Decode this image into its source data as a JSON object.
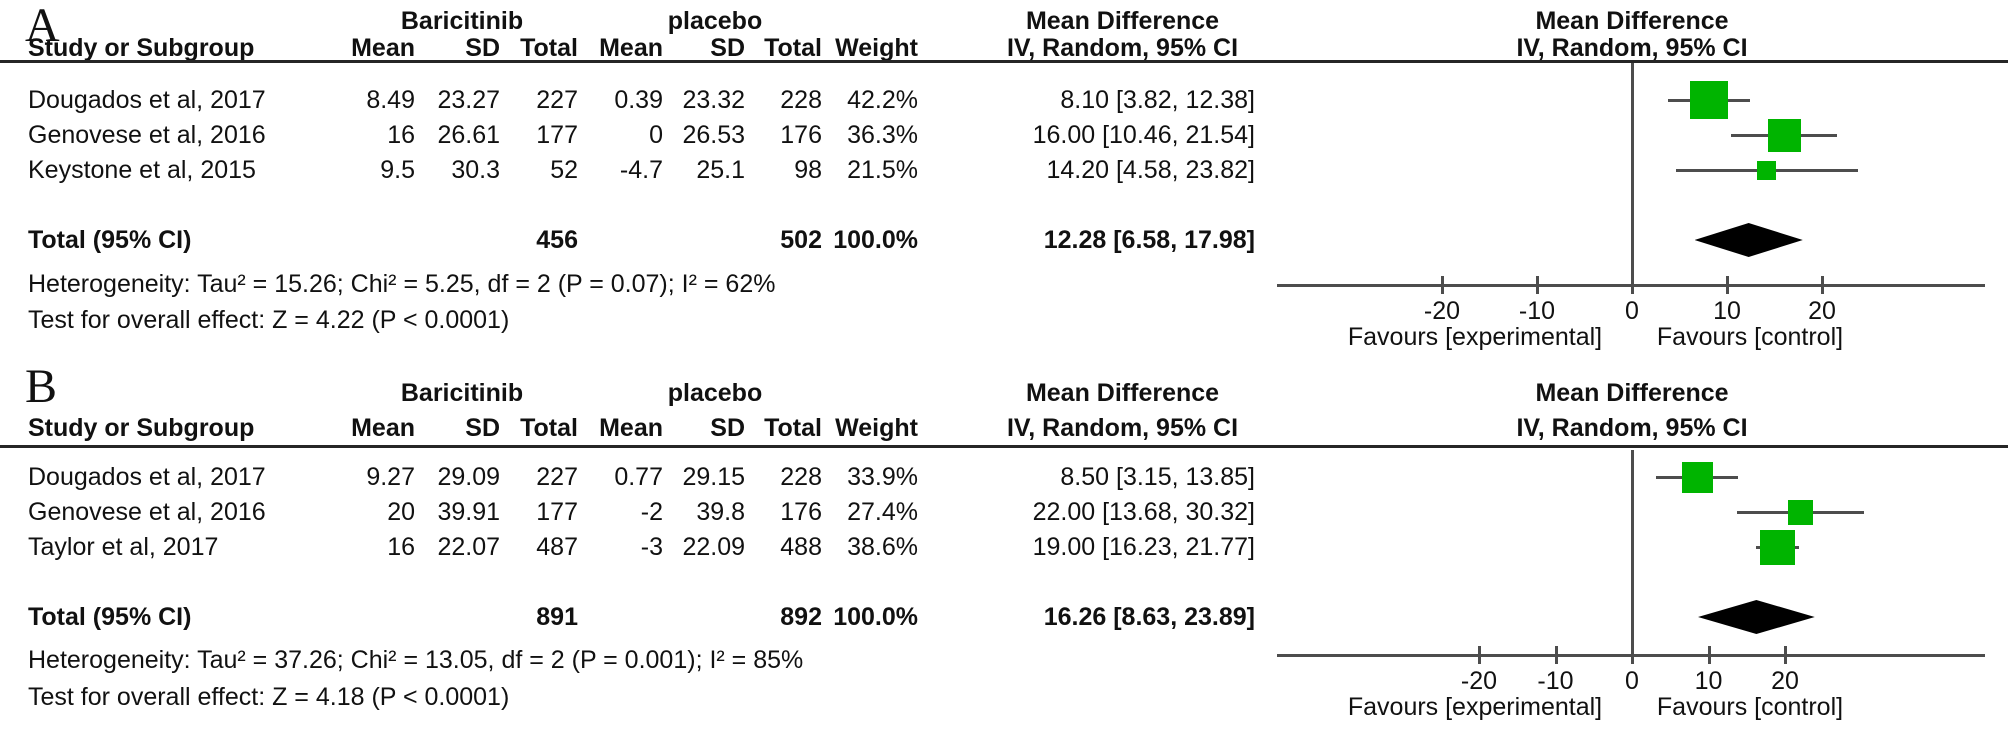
{
  "colors": {
    "marker_green": "#00b400",
    "diamond_black": "#000000",
    "plot_line_gray": "#4d4d4d",
    "separator_dark": "#262626",
    "text": "#111111"
  },
  "chart_data": [
    {
      "type": "scatter",
      "subtype": "forest-plot-mean-difference",
      "panel_label": "A",
      "group_headers": {
        "experimental": "Baricitinib",
        "control": "placebo"
      },
      "effect_header": {
        "line1": "Mean Difference",
        "line2": "IV, Random, 95% CI"
      },
      "column_headers": {
        "study": "Study or Subgroup",
        "mean": "Mean",
        "sd": "SD",
        "total": "Total",
        "weight": "Weight",
        "ci": "IV, Random, 95% CI"
      },
      "studies": [
        {
          "name": "Dougados et al, 2017",
          "exp_mean": "8.49",
          "exp_sd": "23.27",
          "exp_total": "227",
          "ctl_mean": "0.39",
          "ctl_sd": "23.32",
          "ctl_total": "228",
          "weight": "42.2%",
          "ci_label": "8.10 [3.82, 12.38]",
          "md": 8.1,
          "ci_low": 3.82,
          "ci_high": 12.38,
          "weight_pct": 42.2
        },
        {
          "name": "Genovese et al, 2016",
          "exp_mean": "16",
          "exp_sd": "26.61",
          "exp_total": "177",
          "ctl_mean": "0",
          "ctl_sd": "26.53",
          "ctl_total": "176",
          "weight": "36.3%",
          "ci_label": "16.00 [10.46, 21.54]",
          "md": 16.0,
          "ci_low": 10.46,
          "ci_high": 21.54,
          "weight_pct": 36.3
        },
        {
          "name": "Keystone et al, 2015",
          "exp_mean": "9.5",
          "exp_sd": "30.3",
          "exp_total": "52",
          "ctl_mean": "-4.7",
          "ctl_sd": "25.1",
          "ctl_total": "98",
          "weight": "21.5%",
          "ci_label": "14.20 [4.58, 23.82]",
          "md": 14.2,
          "ci_low": 4.58,
          "ci_high": 23.82,
          "weight_pct": 21.5
        }
      ],
      "total_row": {
        "label": "Total (95% CI)",
        "exp_total": "456",
        "ctl_total": "502",
        "weight": "100.0%",
        "ci_label": "12.28 [6.58, 17.98]",
        "md": 12.28,
        "ci_low": 6.58,
        "ci_high": 17.98
      },
      "heterogeneity": "Heterogeneity: Tau² = 15.26; Chi² = 5.25, df = 2 (P = 0.07); I² = 62%",
      "overall_effect": "Test for overall effect: Z = 4.22 (P < 0.0001)",
      "axis": {
        "ticks": [
          -20,
          -10,
          0,
          10,
          20
        ],
        "xlim": [
          -37,
          37
        ],
        "favours_left": "Favours [experimental]",
        "favours_right": "Favours [control]"
      }
    },
    {
      "type": "scatter",
      "subtype": "forest-plot-mean-difference",
      "panel_label": "B",
      "group_headers": {
        "experimental": "Baricitinib",
        "control": "placebo"
      },
      "effect_header": {
        "line1": "Mean Difference",
        "line2": "IV, Random, 95% CI"
      },
      "column_headers": {
        "study": "Study or Subgroup",
        "mean": "Mean",
        "sd": "SD",
        "total": "Total",
        "weight": "Weight",
        "ci": "IV, Random, 95% CI"
      },
      "studies": [
        {
          "name": "Dougados et al, 2017",
          "exp_mean": "9.27",
          "exp_sd": "29.09",
          "exp_total": "227",
          "ctl_mean": "0.77",
          "ctl_sd": "29.15",
          "ctl_total": "228",
          "weight": "33.9%",
          "ci_label": "8.50 [3.15, 13.85]",
          "md": 8.5,
          "ci_low": 3.15,
          "ci_high": 13.85,
          "weight_pct": 33.9
        },
        {
          "name": "Genovese et al, 2016",
          "exp_mean": "20",
          "exp_sd": "39.91",
          "exp_total": "177",
          "ctl_mean": "-2",
          "ctl_sd": "39.8",
          "ctl_total": "176",
          "weight": "27.4%",
          "ci_label": "22.00 [13.68, 30.32]",
          "md": 22.0,
          "ci_low": 13.68,
          "ci_high": 30.32,
          "weight_pct": 27.4
        },
        {
          "name": "Taylor et al, 2017",
          "exp_mean": "16",
          "exp_sd": "22.07",
          "exp_total": "487",
          "ctl_mean": "-3",
          "ctl_sd": "22.09",
          "ctl_total": "488",
          "weight": "38.6%",
          "ci_label": "19.00 [16.23, 21.77]",
          "md": 19.0,
          "ci_low": 16.23,
          "ci_high": 21.77,
          "weight_pct": 38.6
        }
      ],
      "total_row": {
        "label": "Total (95% CI)",
        "exp_total": "891",
        "ctl_total": "892",
        "weight": "100.0%",
        "ci_label": "16.26 [8.63, 23.89]",
        "md": 16.26,
        "ci_low": 8.63,
        "ci_high": 23.89
      },
      "heterogeneity": "Heterogeneity: Tau² = 37.26; Chi² = 13.05, df = 2 (P = 0.001); I² = 85%",
      "overall_effect": "Test for overall effect: Z = 4.18 (P < 0.0001)",
      "axis": {
        "ticks": [
          -20,
          -10,
          0,
          10,
          20
        ],
        "xlim": [
          -46,
          46
        ],
        "favours_left": "Favours [experimental]",
        "favours_right": "Favours [control]"
      }
    }
  ]
}
